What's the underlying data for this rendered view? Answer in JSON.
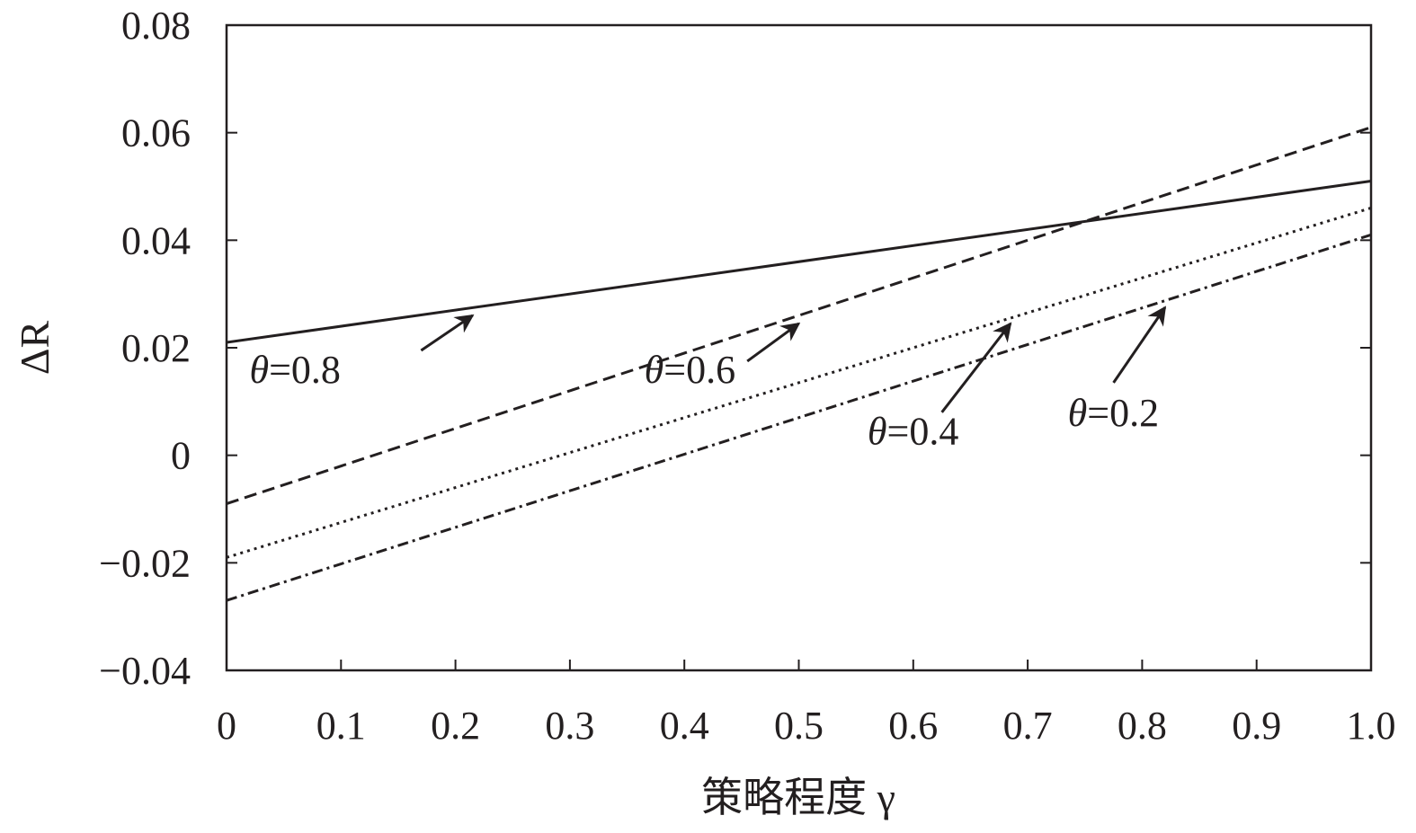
{
  "chart_data": {
    "type": "line",
    "title": "",
    "xlabel": "策略程度 γ",
    "ylabel": "ΔR",
    "xlim": [
      0,
      1.0
    ],
    "ylim": [
      -0.04,
      0.08
    ],
    "grid": false,
    "legend": "none",
    "x_ticks": [
      "0",
      "0.1",
      "0.2",
      "0.3",
      "0.4",
      "0.5",
      "0.6",
      "0.7",
      "0.8",
      "0.9",
      "1.0"
    ],
    "y_ticks": [
      "−0.04",
      "−0.02",
      "0",
      "0.02",
      "0.04",
      "0.06",
      "0.08"
    ],
    "x": [
      0,
      1.0
    ],
    "series": [
      {
        "label": "θ=0.8",
        "values": [
          0.021,
          0.051
        ],
        "style": "solid"
      },
      {
        "label": "θ=0.6",
        "values": [
          -0.009,
          0.061
        ],
        "style": "dashed"
      },
      {
        "label": "θ=0.4",
        "values": [
          -0.019,
          0.046
        ],
        "style": "dotted"
      },
      {
        "label": "θ=0.2",
        "values": [
          -0.027,
          0.041
        ],
        "style": "dashdot"
      }
    ],
    "annotations": [
      {
        "theta": "θ",
        "rest": "=0.8",
        "text_at": [
          0.02,
          0.0135
        ],
        "arrow_from": [
          0.17,
          0.0195
        ],
        "arrow_to": [
          0.215,
          0.026
        ]
      },
      {
        "theta": "θ",
        "rest": "=0.6",
        "text_at": [
          0.365,
          0.0135
        ],
        "arrow_from": [
          0.455,
          0.0175
        ],
        "arrow_to": [
          0.5,
          0.0245
        ]
      },
      {
        "theta": "θ",
        "rest": "=0.4",
        "text_at": [
          0.56,
          0.002
        ],
        "arrow_from": [
          0.625,
          0.008
        ],
        "arrow_to": [
          0.685,
          0.0245
        ]
      },
      {
        "theta": "θ",
        "rest": "=0.2",
        "text_at": [
          0.735,
          0.0055
        ],
        "arrow_from": [
          0.775,
          0.0135
        ],
        "arrow_to": [
          0.82,
          0.0275
        ]
      }
    ],
    "colors": {
      "ink": "#231f20"
    }
  }
}
